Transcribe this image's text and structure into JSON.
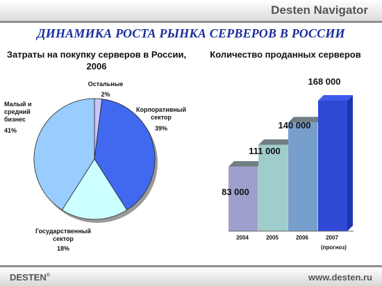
{
  "header": {
    "brand": "Desten Navigator"
  },
  "title": "ДИНАМИКА РОСТА РЫНКА  СЕРВЕРОВ В РОССИИ",
  "footer": {
    "brand": "DESTEN",
    "registered": "®",
    "url": "www.desten.ru"
  },
  "chart_data": [
    {
      "type": "pie",
      "title": "Затраты на покупку серверов в России, 2006",
      "slices": [
        {
          "label": "Остальные",
          "value": 2,
          "value_label": "2%",
          "color": "#c8c8ff"
        },
        {
          "label": "Корпоративный сектор",
          "value": 39,
          "value_label": "39%",
          "color": "#4169f0"
        },
        {
          "label": "Государственный сектор",
          "value": 18,
          "value_label": "18%",
          "color": "#ccffff"
        },
        {
          "label": "Малый и средний бизнес",
          "value": 41,
          "value_label": "41%",
          "color": "#99ccff"
        }
      ],
      "legend": false
    },
    {
      "type": "bar",
      "title": "Количество проданных серверов",
      "categories": [
        "2004",
        "2005",
        "2006",
        "2007"
      ],
      "values": [
        83000,
        111000,
        140000,
        168000
      ],
      "value_labels": [
        "83 000",
        "111 000",
        "140 000",
        "168 000"
      ],
      "colors": [
        "#9f9fce",
        "#9fcdcb",
        "#779fcd",
        "#2f49d6"
      ],
      "annotation": "(прогноз)",
      "grid": false
    }
  ]
}
